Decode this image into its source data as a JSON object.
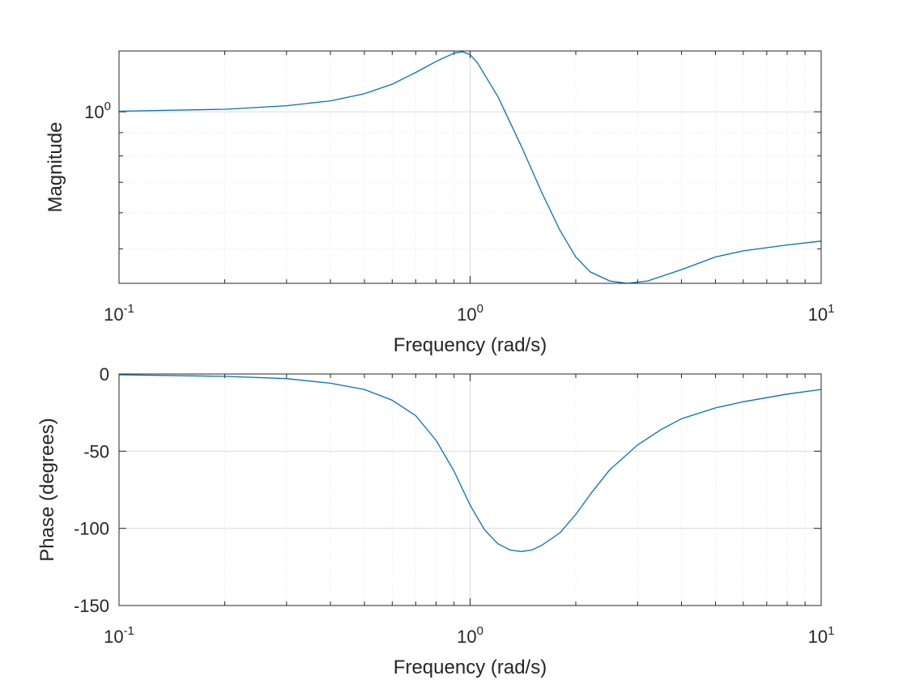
{
  "chart_data": [
    {
      "type": "line",
      "xscale": "log",
      "yscale": "log",
      "xlim": [
        0.1,
        10
      ],
      "ylim": [
        0.42,
        1.36
      ],
      "xlabel": "Frequency (rad/s)",
      "ylabel": "Magnitude",
      "x_ticks": [
        {
          "base": "10",
          "exp": "-1"
        },
        {
          "base": "10",
          "exp": "0"
        },
        {
          "base": "10",
          "exp": "1"
        }
      ],
      "y_ticks": [
        {
          "value": 1,
          "base": "10",
          "exp": "0"
        }
      ],
      "grid": true,
      "color": "#0072BD",
      "series": [
        {
          "x": [
            0.1,
            0.2,
            0.3,
            0.4,
            0.5,
            0.6,
            0.7,
            0.8,
            0.9,
            0.95,
            1.0,
            1.05,
            1.2,
            1.4,
            1.6,
            1.8,
            2.0,
            2.2,
            2.5,
            2.8,
            3.2,
            4,
            5,
            6,
            8,
            10
          ],
          "y": [
            1.003,
            1.013,
            1.031,
            1.057,
            1.096,
            1.15,
            1.22,
            1.29,
            1.345,
            1.355,
            1.335,
            1.28,
            1.08,
            0.84,
            0.665,
            0.55,
            0.48,
            0.445,
            0.425,
            0.42,
            0.425,
            0.45,
            0.48,
            0.495,
            0.51,
            0.52
          ]
        }
      ]
    },
    {
      "type": "line",
      "xscale": "log",
      "xlim": [
        0.1,
        10
      ],
      "ylim": [
        -150,
        0
      ],
      "xlabel": "Frequency (rad/s)",
      "ylabel": "Phase (degrees)",
      "x_ticks": [
        {
          "base": "10",
          "exp": "-1"
        },
        {
          "base": "10",
          "exp": "0"
        },
        {
          "base": "10",
          "exp": "1"
        }
      ],
      "y_ticks": [
        {
          "value": 0,
          "label": "0"
        },
        {
          "value": -50,
          "label": "-50"
        },
        {
          "value": -100,
          "label": "-100"
        },
        {
          "value": -150,
          "label": "-150"
        }
      ],
      "grid": true,
      "color": "#0072BD",
      "series": [
        {
          "x": [
            0.1,
            0.2,
            0.3,
            0.4,
            0.5,
            0.6,
            0.7,
            0.8,
            0.9,
            1.0,
            1.1,
            1.2,
            1.3,
            1.4,
            1.5,
            1.6,
            1.8,
            2.0,
            2.2,
            2.5,
            3.0,
            3.5,
            4.0,
            5.0,
            6.0,
            8.0,
            10.0
          ],
          "y": [
            -0.5,
            -1.5,
            -3,
            -6,
            -10,
            -17,
            -27,
            -43,
            -63,
            -85,
            -101,
            -110,
            -114,
            -115,
            -114,
            -111,
            -103,
            -91,
            -78,
            -62,
            -46,
            -36,
            -29,
            -22,
            -18,
            -13,
            -10
          ]
        }
      ]
    }
  ]
}
